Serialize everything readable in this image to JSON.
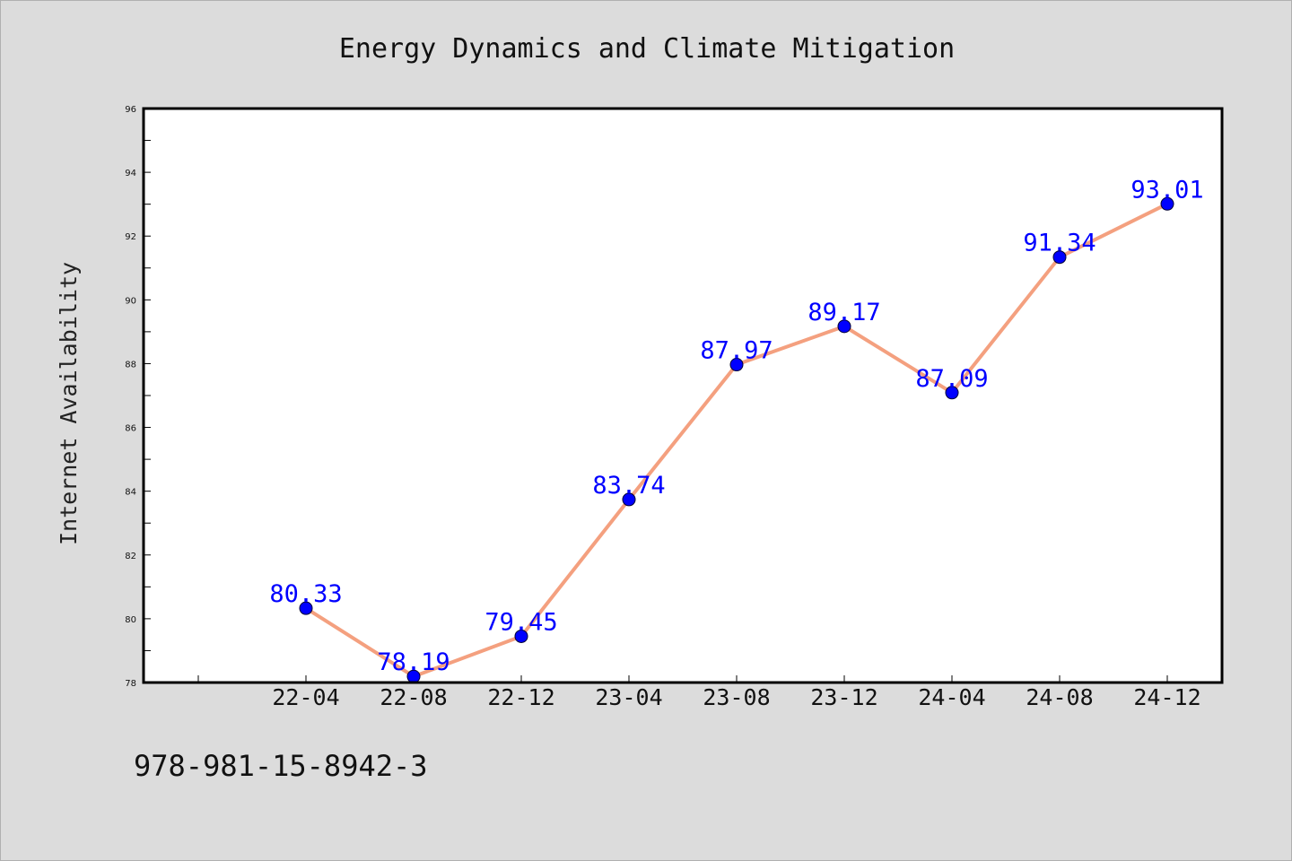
{
  "chart_data": {
    "type": "line",
    "title": "Energy Dynamics and Climate Mitigation",
    "xlabel": "",
    "ylabel": "Internet Availability",
    "categories": [
      "22-04",
      "22-08",
      "22-12",
      "23-04",
      "23-08",
      "23-12",
      "24-04",
      "24-08",
      "24-12"
    ],
    "series": [
      {
        "values": [
          80.33,
          78.19,
          79.45,
          83.74,
          87.97,
          89.17,
          87.09,
          91.34,
          93.01
        ]
      }
    ],
    "ylim": [
      78,
      96
    ],
    "yticks": [
      78,
      80,
      82,
      84,
      86,
      88,
      90,
      92,
      94,
      96
    ],
    "grid": false,
    "legend": "none",
    "colors": {
      "line": "#f4a07f",
      "marker": "#0000ff",
      "data_label": "#0000ff",
      "plot_background": "#ffffff",
      "figure_background": "#dcdcdc"
    }
  },
  "footer": {
    "text": "978-981-15-8942-3"
  }
}
